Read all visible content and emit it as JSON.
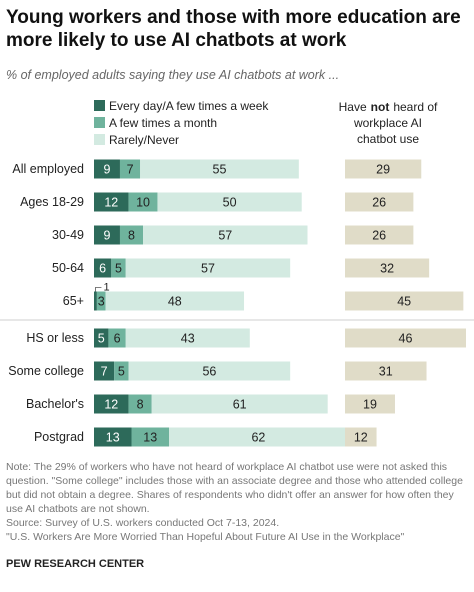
{
  "title": "Young workers and those with more education are more likely to use AI chatbots at work",
  "subtitle": "% of employed adults saying they use AI chatbots at work ...",
  "right_header_lines": [
    "Have",
    "not",
    "heard of",
    "workplace AI",
    "chatbot use"
  ],
  "small_label": "1",
  "colors": {
    "every_day": "#2d6a5a",
    "few_month": "#6fb39d",
    "rarely": "#d3eae1",
    "not_heard": "#e0dcc8",
    "separator": "#cfcfcf"
  },
  "chart_data": {
    "type": "bar",
    "orientation": "horizontal",
    "stacked": true,
    "categories": [
      "All employed",
      "Ages 18-29",
      "30-49",
      "50-64",
      "65+",
      "HS or less",
      "Some college",
      "Bachelor's",
      "Postgrad"
    ],
    "series": [
      {
        "name": "Every day/A few times a week",
        "values": [
          9,
          12,
          9,
          6,
          1,
          5,
          7,
          12,
          13
        ]
      },
      {
        "name": "A few times a month",
        "values": [
          7,
          10,
          8,
          5,
          3,
          6,
          5,
          8,
          13
        ]
      },
      {
        "name": "Rarely/Never",
        "values": [
          55,
          50,
          57,
          57,
          48,
          43,
          56,
          61,
          62
        ]
      }
    ],
    "right_panel": {
      "values": [
        29,
        26,
        26,
        32,
        45,
        46,
        31,
        19,
        12
      ]
    },
    "legend_position": "top-left",
    "grid": false
  },
  "note": "Note: The 29% of workers who have not heard of workplace AI chatbot use were not asked this question. \"Some college\" includes those with an associate degree and those who attended college but did not obtain a degree. Shares of respondents who didn't offer an answer for how often they use AI chatbots are not shown.",
  "source": "Source: Survey of U.S. workers conducted Oct 7-13, 2024.",
  "report": "\"U.S. Workers Are More Worried Than Hopeful About Future AI Use in the Workplace\"",
  "brand": "PEW RESEARCH CENTER"
}
